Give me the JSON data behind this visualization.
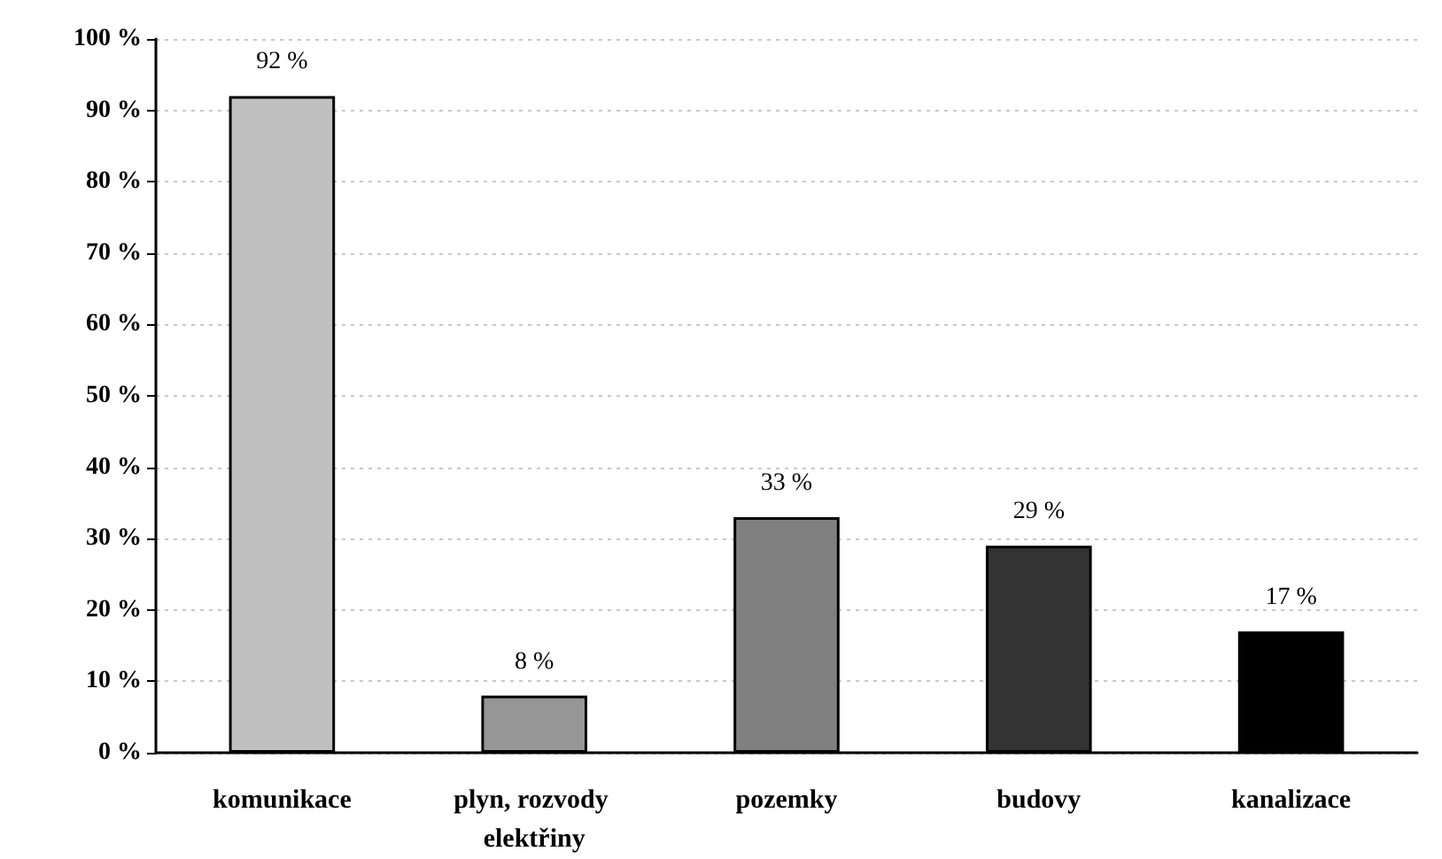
{
  "chart_data": {
    "type": "bar",
    "categories": [
      "komunikace",
      "plyn, rozvody elektřiny",
      "pozemky",
      "budovy",
      "kanalizace"
    ],
    "values": [
      92,
      8,
      33,
      29,
      17
    ],
    "colors": [
      "#c0c0c0",
      "#969696",
      "#808080",
      "#333333",
      "#000000"
    ],
    "value_labels": [
      "92 %",
      "8 %",
      "33 %",
      "29 %",
      "17 %"
    ],
    "ylim": [
      0,
      100
    ],
    "yticks": [
      {
        "value": 0,
        "label": "0 %"
      },
      {
        "value": 10,
        "label": "10 %"
      },
      {
        "value": 20,
        "label": "20 %"
      },
      {
        "value": 30,
        "label": "30 %"
      },
      {
        "value": 40,
        "label": "40 %"
      },
      {
        "value": 50,
        "label": "50 %"
      },
      {
        "value": 60,
        "label": "60 %"
      },
      {
        "value": 70,
        "label": "70 %"
      },
      {
        "value": 80,
        "label": "80 %"
      },
      {
        "value": 90,
        "label": "90 %"
      },
      {
        "value": 100,
        "label": "100 %"
      }
    ],
    "grid": "y"
  }
}
